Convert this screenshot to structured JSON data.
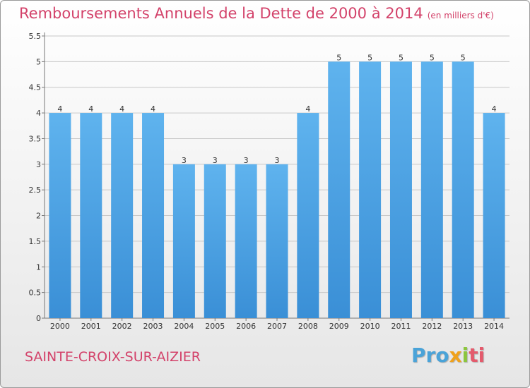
{
  "header": {
    "title": "Remboursements Annuels de la Dette de 2000 à 2014",
    "unit": "(en milliers d'€)"
  },
  "footer": {
    "commune": "SAINTE-CROIX-SUR-AIZIER",
    "brand_parts": [
      "Pro",
      "x",
      "i",
      "ti"
    ]
  },
  "colors": {
    "bar": "#3a8fd6",
    "bar_light": "#5fb3ee",
    "title": "#d3426a",
    "grid": "#c8c8c8"
  },
  "chart_data": {
    "type": "bar",
    "title": "Remboursements Annuels de la Dette de 2000 à 2014",
    "xlabel": "",
    "ylabel": "",
    "categories": [
      "2000",
      "2001",
      "2002",
      "2003",
      "2004",
      "2005",
      "2006",
      "2007",
      "2008",
      "2009",
      "2010",
      "2011",
      "2012",
      "2013",
      "2014"
    ],
    "values": [
      4,
      4,
      4,
      4,
      3,
      3,
      3,
      3,
      4,
      5,
      5,
      5,
      5,
      5,
      4
    ],
    "ylim": [
      0,
      5.5
    ],
    "yticks": [
      "0",
      "0.5",
      "1",
      "1.5",
      "2",
      "2.5",
      "3",
      "3.5",
      "4",
      "4.5",
      "5",
      "5.5"
    ],
    "grid": true
  }
}
